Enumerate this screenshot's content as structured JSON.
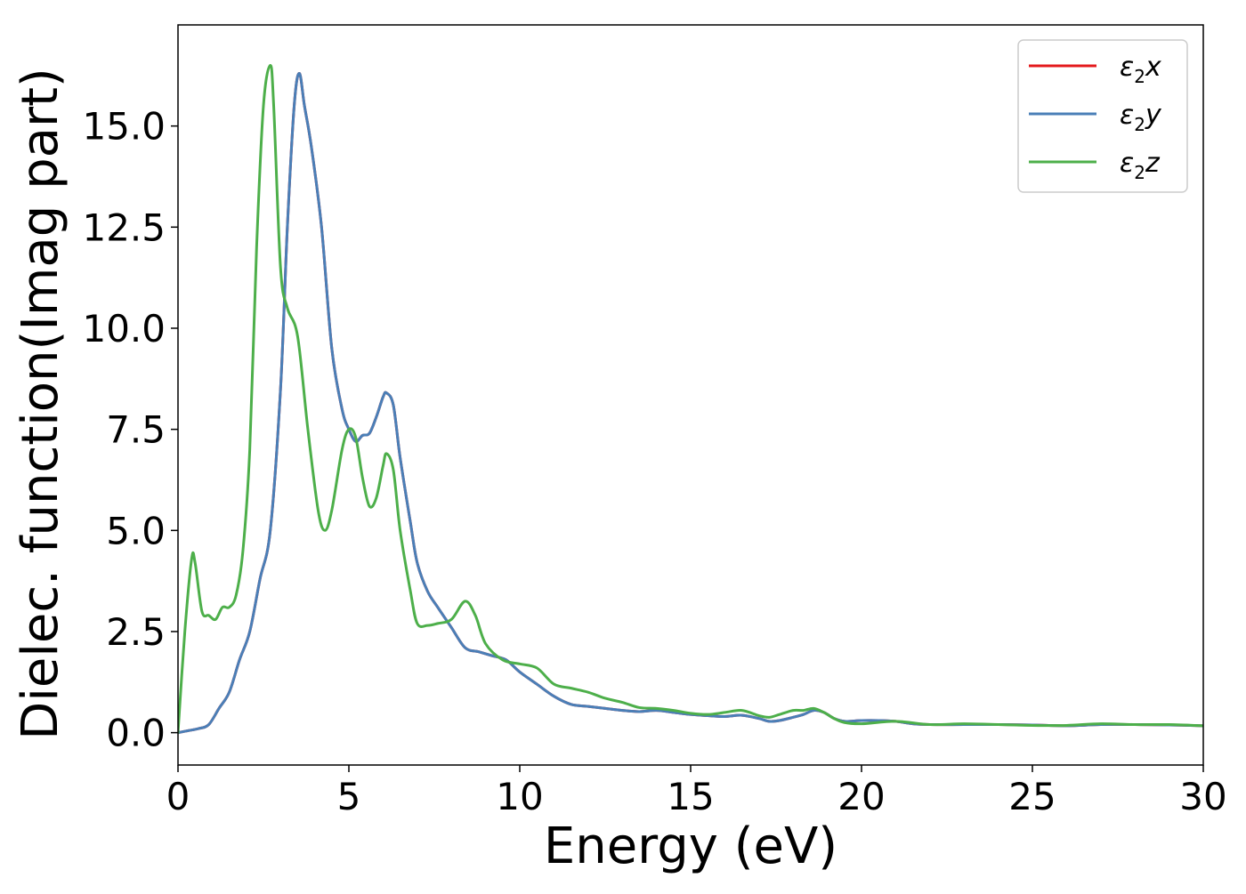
{
  "chart_data": {
    "type": "line",
    "title": "",
    "xlabel": "Energy (eV)",
    "ylabel": "Dielec. function(Imag part)",
    "xlim": [
      0,
      30
    ],
    "ylim": [
      -0.8,
      17.5
    ],
    "xticks": [
      0,
      5,
      10,
      15,
      20,
      25,
      30
    ],
    "xtick_labels": [
      "0",
      "5",
      "10",
      "15",
      "20",
      "25",
      "30"
    ],
    "yticks": [
      0,
      2.5,
      5,
      7.5,
      10,
      12.5,
      15
    ],
    "ytick_labels": [
      "0.0",
      "2.5",
      "5.0",
      "7.5",
      "10.0",
      "12.5",
      "15.0"
    ],
    "grid": false,
    "legend_position": "top-right",
    "series": [
      {
        "name": "ε2x",
        "legend_base": "ε",
        "legend_sub": "2",
        "legend_suffix": "x",
        "color": "#e41a1c",
        "x": [
          0,
          0.3,
          0.6,
          0.9,
          1.2,
          1.5,
          1.8,
          2.1,
          2.4,
          2.7,
          3.0,
          3.2,
          3.4,
          3.55,
          3.7,
          3.9,
          4.2,
          4.5,
          4.8,
          5.0,
          5.2,
          5.4,
          5.6,
          5.8,
          6.0,
          6.1,
          6.3,
          6.5,
          6.8,
          7.0,
          7.3,
          7.6,
          8.0,
          8.4,
          8.8,
          9.2,
          9.6,
          10.0,
          10.5,
          11.0,
          11.5,
          12.0,
          12.5,
          13.0,
          13.5,
          14.0,
          14.5,
          15.0,
          15.5,
          16.0,
          16.5,
          17.0,
          17.3,
          17.6,
          18.0,
          18.3,
          18.6,
          18.9,
          19.2,
          19.5,
          20.0,
          20.5,
          21.0,
          21.5,
          22.0,
          23.0,
          24.0,
          25.0,
          26.0,
          27.0,
          28.0,
          29.0,
          30.0
        ],
        "values": [
          0.0,
          0.05,
          0.1,
          0.2,
          0.6,
          1.0,
          1.8,
          2.5,
          3.8,
          5.0,
          8.5,
          12.5,
          15.5,
          16.3,
          15.5,
          14.5,
          12.5,
          9.5,
          8.0,
          7.5,
          7.2,
          7.35,
          7.4,
          7.8,
          8.3,
          8.4,
          8.1,
          6.8,
          5.2,
          4.2,
          3.5,
          3.1,
          2.6,
          2.1,
          2.0,
          1.9,
          1.8,
          1.5,
          1.2,
          0.9,
          0.7,
          0.65,
          0.6,
          0.55,
          0.52,
          0.55,
          0.5,
          0.45,
          0.42,
          0.4,
          0.43,
          0.35,
          0.28,
          0.3,
          0.38,
          0.45,
          0.55,
          0.5,
          0.35,
          0.28,
          0.3,
          0.3,
          0.28,
          0.22,
          0.2,
          0.2,
          0.2,
          0.19,
          0.17,
          0.2,
          0.2,
          0.19,
          0.17
        ]
      },
      {
        "name": "ε2y",
        "legend_base": "ε",
        "legend_sub": "2",
        "legend_suffix": "y",
        "color": "#4a7fb7",
        "x": [
          0,
          0.3,
          0.6,
          0.9,
          1.2,
          1.5,
          1.8,
          2.1,
          2.4,
          2.7,
          3.0,
          3.2,
          3.4,
          3.55,
          3.7,
          3.9,
          4.2,
          4.5,
          4.8,
          5.0,
          5.2,
          5.4,
          5.6,
          5.8,
          6.0,
          6.1,
          6.3,
          6.5,
          6.8,
          7.0,
          7.3,
          7.6,
          8.0,
          8.4,
          8.8,
          9.2,
          9.6,
          10.0,
          10.5,
          11.0,
          11.5,
          12.0,
          12.5,
          13.0,
          13.5,
          14.0,
          14.5,
          15.0,
          15.5,
          16.0,
          16.5,
          17.0,
          17.3,
          17.6,
          18.0,
          18.3,
          18.6,
          18.9,
          19.2,
          19.5,
          20.0,
          20.5,
          21.0,
          21.5,
          22.0,
          23.0,
          24.0,
          25.0,
          26.0,
          27.0,
          28.0,
          29.0,
          30.0
        ],
        "values": [
          0.0,
          0.05,
          0.1,
          0.2,
          0.6,
          1.0,
          1.8,
          2.5,
          3.8,
          5.0,
          8.5,
          12.5,
          15.5,
          16.3,
          15.5,
          14.5,
          12.5,
          9.5,
          8.0,
          7.5,
          7.2,
          7.35,
          7.4,
          7.8,
          8.3,
          8.4,
          8.1,
          6.8,
          5.2,
          4.2,
          3.5,
          3.1,
          2.6,
          2.1,
          2.0,
          1.9,
          1.8,
          1.5,
          1.2,
          0.9,
          0.7,
          0.65,
          0.6,
          0.55,
          0.52,
          0.55,
          0.5,
          0.45,
          0.42,
          0.4,
          0.43,
          0.35,
          0.28,
          0.3,
          0.38,
          0.45,
          0.55,
          0.5,
          0.35,
          0.28,
          0.3,
          0.3,
          0.28,
          0.22,
          0.2,
          0.2,
          0.2,
          0.19,
          0.17,
          0.2,
          0.2,
          0.19,
          0.17
        ]
      },
      {
        "name": "ε2z",
        "legend_base": "ε",
        "legend_sub": "2",
        "legend_suffix": "z",
        "color": "#4daf4a",
        "x": [
          0,
          0.2,
          0.4,
          0.5,
          0.7,
          0.9,
          1.1,
          1.3,
          1.5,
          1.7,
          1.9,
          2.1,
          2.3,
          2.5,
          2.7,
          2.8,
          3.0,
          3.2,
          3.5,
          3.8,
          4.1,
          4.3,
          4.5,
          4.8,
          5.0,
          5.2,
          5.4,
          5.6,
          5.8,
          6.0,
          6.1,
          6.3,
          6.5,
          6.8,
          7.0,
          7.3,
          7.6,
          8.0,
          8.4,
          8.7,
          9.0,
          9.5,
          10.0,
          10.5,
          11.0,
          11.5,
          12.0,
          12.5,
          13.0,
          13.5,
          14.0,
          14.5,
          15.0,
          15.5,
          16.0,
          16.5,
          17.0,
          17.3,
          17.6,
          18.0,
          18.3,
          18.6,
          18.9,
          19.2,
          19.5,
          20.0,
          21.0,
          22.0,
          23.0,
          24.0,
          25.0,
          26.0,
          27.0,
          28.0,
          29.0,
          30.0
        ],
        "values": [
          0.0,
          2.5,
          4.3,
          4.2,
          3.0,
          2.9,
          2.8,
          3.1,
          3.1,
          3.4,
          4.5,
          7.0,
          12.0,
          15.5,
          16.5,
          15.5,
          11.5,
          10.5,
          9.8,
          7.5,
          5.5,
          5.0,
          5.5,
          7.0,
          7.5,
          7.3,
          6.3,
          5.6,
          5.8,
          6.6,
          6.9,
          6.5,
          5.0,
          3.5,
          2.7,
          2.65,
          2.7,
          2.8,
          3.25,
          2.9,
          2.2,
          1.8,
          1.7,
          1.6,
          1.2,
          1.1,
          1.0,
          0.85,
          0.75,
          0.62,
          0.6,
          0.55,
          0.48,
          0.45,
          0.5,
          0.55,
          0.42,
          0.38,
          0.45,
          0.55,
          0.55,
          0.6,
          0.5,
          0.35,
          0.25,
          0.22,
          0.28,
          0.2,
          0.22,
          0.2,
          0.18,
          0.18,
          0.22,
          0.2,
          0.2,
          0.17
        ]
      }
    ]
  }
}
